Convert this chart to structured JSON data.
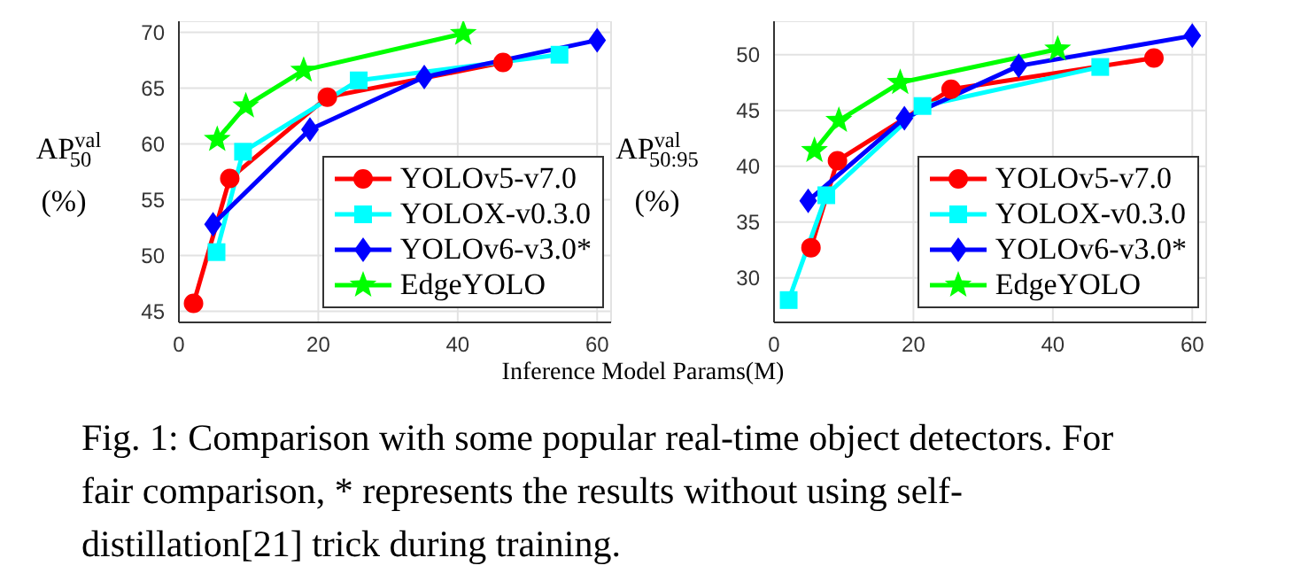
{
  "chart_data": [
    {
      "type": "line",
      "ylabel": "AP$^{val}$$_{50}$ (%)",
      "xlabel": "Inference Model Params(M)",
      "xlim": [
        0,
        62
      ],
      "xticks": [
        0,
        20,
        40,
        60
      ],
      "ylim": [
        44,
        71
      ],
      "yticks": [
        45,
        50,
        55,
        60,
        65,
        70
      ],
      "grid": true,
      "legend": "bottom right",
      "line_style": "solid",
      "series": [
        {
          "name": "YOLOv5-v7.0",
          "color": "#ff0000",
          "marker": "circle",
          "x": [
            2.1,
            7.3,
            21.3,
            46.5
          ],
          "values": [
            45.7,
            56.9,
            64.2,
            67.3
          ]
        },
        {
          "name": "YOLOX-v0.3.0",
          "color": "#00ffff",
          "marker": "square",
          "x": [
            5.4,
            9.2,
            25.8,
            54.6
          ],
          "values": [
            50.3,
            59.3,
            65.7,
            68.0
          ]
        },
        {
          "name": "YOLOv6-v3.0*",
          "color": "#0000ff",
          "marker": "diamond",
          "x": [
            4.9,
            18.8,
            35.2,
            60.0
          ],
          "values": [
            52.8,
            61.3,
            66.0,
            69.3
          ]
        },
        {
          "name": "EdgeYOLO",
          "color": "#00ff00",
          "marker": "star",
          "x": [
            5.5,
            9.6,
            17.9,
            40.8
          ],
          "values": [
            60.4,
            63.4,
            66.6,
            69.9
          ]
        }
      ],
      "annotations": [
        "Fig. 1: Comparison with some popular real-time object detectors. For fair comparison, * represents the results without using self-distillation[21] trick during training."
      ]
    },
    {
      "type": "line",
      "ylabel": "AP$^{val}$$_{50:95}$ (%)",
      "xlim": [
        0,
        62
      ],
      "xticks": [
        0,
        20,
        40,
        60
      ],
      "ylim": [
        26,
        53
      ],
      "yticks": [
        30,
        35,
        40,
        45,
        50
      ],
      "grid": true,
      "legend": "bottom right",
      "line_style": "solid",
      "series": [
        {
          "name": "YOLOv5-v7.0",
          "color": "#ff0000",
          "marker": "circle",
          "x": [
            5.3,
            9.1,
            25.4,
            54.5
          ],
          "values": [
            32.7,
            40.5,
            46.9,
            49.7
          ]
        },
        {
          "name": "YOLOX-v0.3.0",
          "color": "#00ffff",
          "marker": "square",
          "x": [
            2.1,
            7.5,
            21.3,
            46.8
          ],
          "values": [
            28.0,
            37.4,
            45.4,
            48.9
          ]
        },
        {
          "name": "YOLOv6-v3.0*",
          "color": "#0000ff",
          "marker": "diamond",
          "x": [
            4.9,
            18.7,
            35.1,
            60.0
          ],
          "values": [
            36.9,
            44.3,
            49.0,
            51.7
          ]
        },
        {
          "name": "EdgeYOLO",
          "color": "#00ff00",
          "marker": "star",
          "x": [
            5.8,
            9.3,
            18.1,
            40.7
          ],
          "values": [
            41.4,
            44.1,
            47.5,
            50.5
          ]
        }
      ]
    }
  ]
}
